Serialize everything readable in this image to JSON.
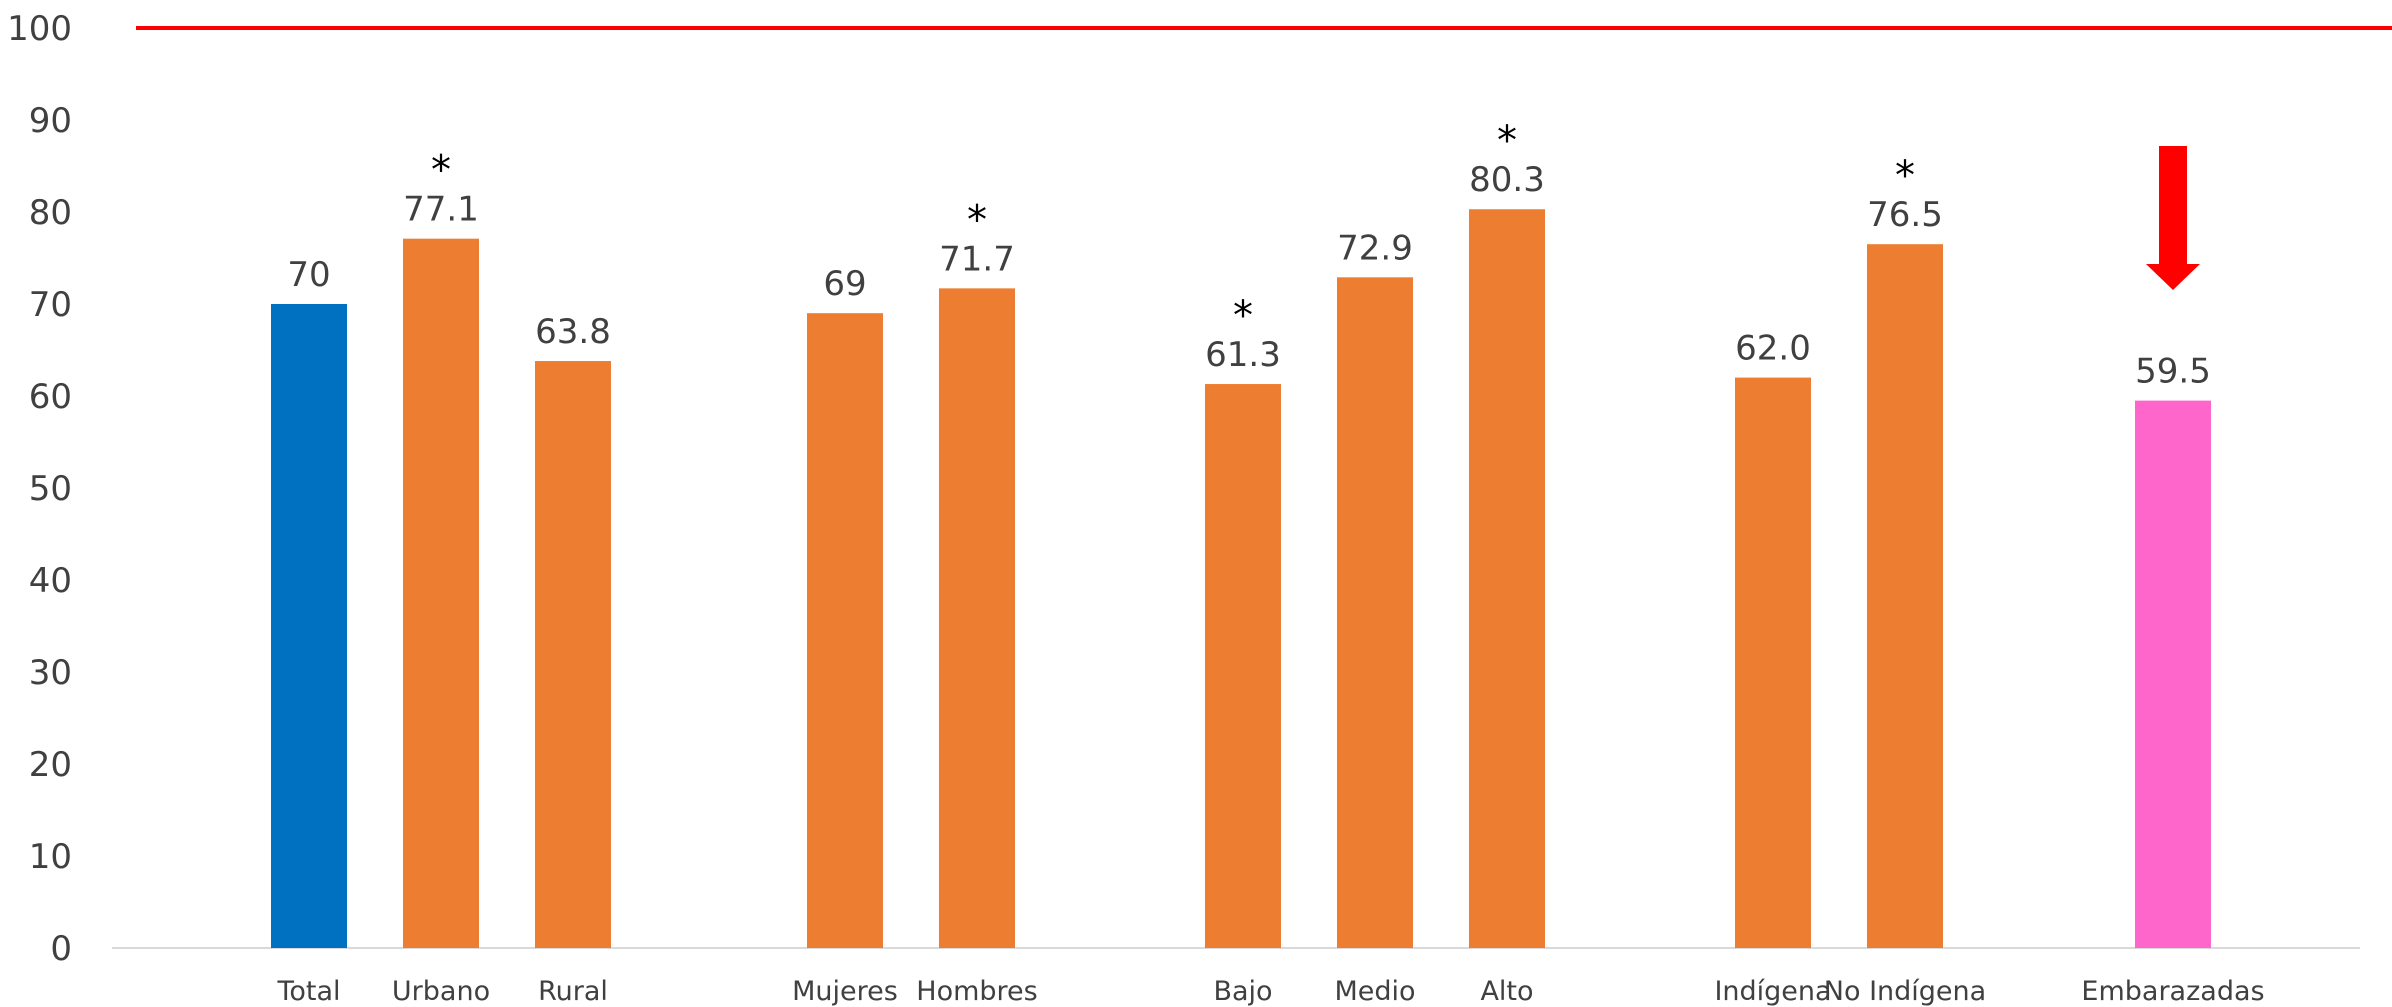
{
  "chart_data": {
    "type": "bar",
    "categories": [
      "Total",
      "Urbano",
      "Rural",
      "Mujeres",
      "Hombres",
      "Bajo",
      "Medio",
      "Alto",
      "Indígena",
      "No Indígena",
      "Embarazadas"
    ],
    "values": [
      70,
      77.1,
      63.8,
      69,
      71.7,
      61.3,
      72.9,
      80.3,
      62.0,
      76.5,
      59.5
    ],
    "value_labels": [
      "70",
      "77.1",
      "63.8",
      "69",
      "71.7",
      "61.3",
      "72.9",
      "80.3",
      "62.0",
      "76.5",
      "59.5"
    ],
    "bar_colors": [
      "#0070C0",
      "#ED7D31",
      "#ED7D31",
      "#ED7D31",
      "#ED7D31",
      "#ED7D31",
      "#ED7D31",
      "#ED7D31",
      "#ED7D31",
      "#ED7D31",
      "#FF66CC"
    ],
    "significance_marker": "*",
    "significant": [
      false,
      true,
      false,
      false,
      true,
      true,
      false,
      true,
      false,
      true,
      false
    ],
    "groups": [
      [
        "Total",
        "Urbano",
        "Rural"
      ],
      [
        "Mujeres",
        "Hombres"
      ],
      [
        "Bajo",
        "Medio",
        "Alto"
      ],
      [
        "Indígena",
        "No Indígena"
      ],
      [
        "Embarazadas"
      ]
    ],
    "reference_line": {
      "value": 100,
      "color": "#FF0000"
    },
    "arrow_annotation": {
      "category": "Embarazadas",
      "direction": "down",
      "color": "#FF0000"
    },
    "yticks": [
      "0",
      "10",
      "20",
      "30",
      "40",
      "50",
      "60",
      "70",
      "80",
      "90",
      "100"
    ],
    "ylim": [
      0,
      100
    ],
    "title": "",
    "xlabel": "",
    "ylabel": "",
    "grid": false,
    "legend": "none"
  }
}
